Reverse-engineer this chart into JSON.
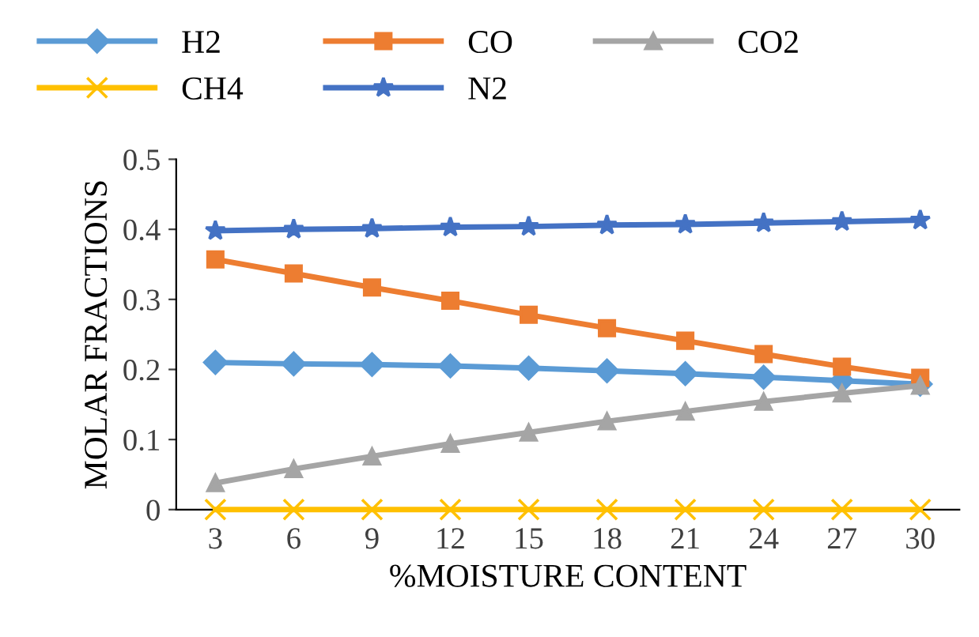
{
  "chart_data": {
    "type": "line",
    "xlabel": "%MOISTURE CONTENT",
    "ylabel": "MOLAR FRACTIONS",
    "categories": [
      "3",
      "6",
      "9",
      "12",
      "15",
      "18",
      "21",
      "24",
      "27",
      "30"
    ],
    "series": [
      {
        "name": "H2",
        "color": "#5b9bd5",
        "marker": "diamond",
        "values": [
          0.21,
          0.208,
          0.207,
          0.205,
          0.202,
          0.198,
          0.194,
          0.189,
          0.184,
          0.179
        ]
      },
      {
        "name": "CO",
        "color": "#ed7d31",
        "marker": "square",
        "values": [
          0.357,
          0.337,
          0.317,
          0.298,
          0.278,
          0.259,
          0.241,
          0.222,
          0.204,
          0.188
        ]
      },
      {
        "name": "CO2",
        "color": "#a5a5a5",
        "marker": "triangle",
        "values": [
          0.038,
          0.058,
          0.076,
          0.094,
          0.11,
          0.126,
          0.14,
          0.154,
          0.166,
          0.177
        ]
      },
      {
        "name": "CH4",
        "color": "#ffc000",
        "marker": "cross",
        "values": [
          0,
          0,
          0,
          0,
          0,
          0,
          0,
          0,
          0,
          0
        ]
      },
      {
        "name": "N2",
        "color": "#4472c4",
        "marker": "star",
        "values": [
          0.398,
          0.4,
          0.401,
          0.403,
          0.404,
          0.406,
          0.407,
          0.409,
          0.411,
          0.413
        ]
      }
    ],
    "ylim": [
      0,
      0.5
    ],
    "yticks": [
      0,
      0.1,
      0.2,
      0.3,
      0.4,
      0.5
    ],
    "grid": false,
    "legend": "top",
    "line_style": "solid"
  }
}
